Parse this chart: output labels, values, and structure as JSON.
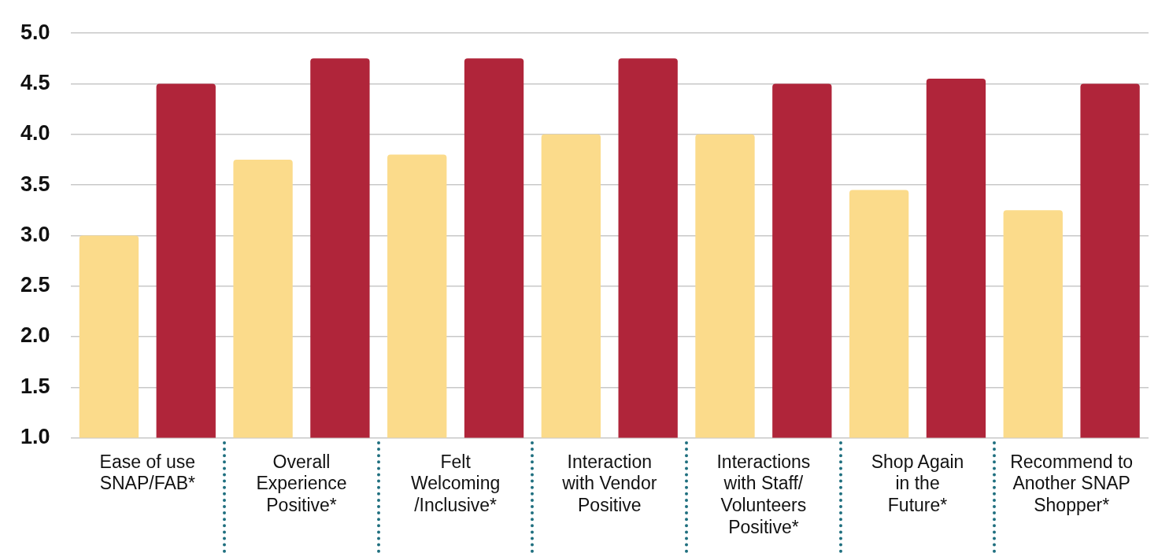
{
  "chart_data": {
    "type": "bar",
    "categories": [
      "Ease of use SNAP/FAB*",
      "Overall Experience Positive*",
      "Felt Welcoming /Inclusive*",
      "Interaction with Vendor Positive",
      "Interactions with Staff/ Volunteers Positive*",
      "Shop Again in the Future*",
      "Recommend to Another SNAP Shopper*"
    ],
    "series": [
      {
        "color": "#fbdb8b",
        "values": [
          3.0,
          3.75,
          3.8,
          4.0,
          4.0,
          3.45,
          3.25
        ]
      },
      {
        "color": "#b0253a",
        "values": [
          4.5,
          4.75,
          4.75,
          4.75,
          4.5,
          4.55,
          4.5
        ]
      }
    ],
    "ylim": [
      1,
      5
    ],
    "yticks": [
      {
        "value": 1,
        "label": "1.0"
      },
      1.5,
      {
        "value": 2,
        "label": "2.0"
      },
      2.5,
      {
        "value": 3,
        "label": "3.0"
      },
      3.5,
      {
        "value": 4,
        "label": "4.0"
      },
      4.5,
      {
        "value": 5,
        "label": "5.0"
      }
    ],
    "grid": "y",
    "legend": false
  }
}
